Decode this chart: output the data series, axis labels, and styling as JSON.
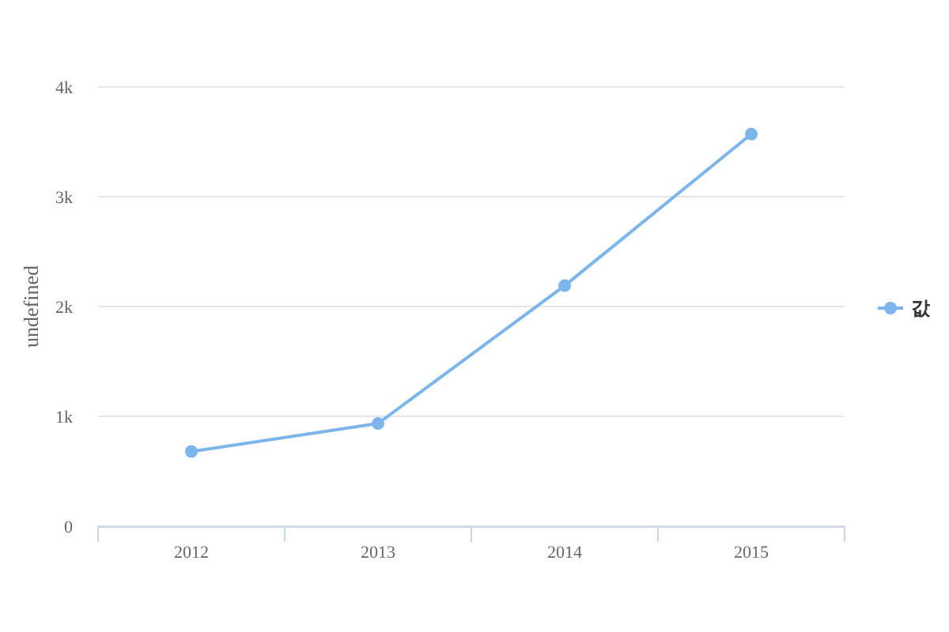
{
  "chart_data": {
    "type": "line",
    "ylabel": "undefined",
    "categories": [
      "2012",
      "2013",
      "2014",
      "2015"
    ],
    "series": [
      {
        "name": "값",
        "color": "#7cb5ec",
        "values": [
          680,
          935,
          2190,
          3570
        ]
      }
    ],
    "ylim": [
      0,
      4000
    ],
    "yticks": [
      0,
      {
        "value": 1000,
        "label": "1k"
      },
      {
        "value": 2000,
        "label": "2k"
      },
      {
        "value": 3000,
        "label": "3k"
      },
      {
        "value": 4000,
        "label": "4k"
      }
    ],
    "grid": "y",
    "legend": "right",
    "marker": "circle",
    "line_style": "solid"
  }
}
